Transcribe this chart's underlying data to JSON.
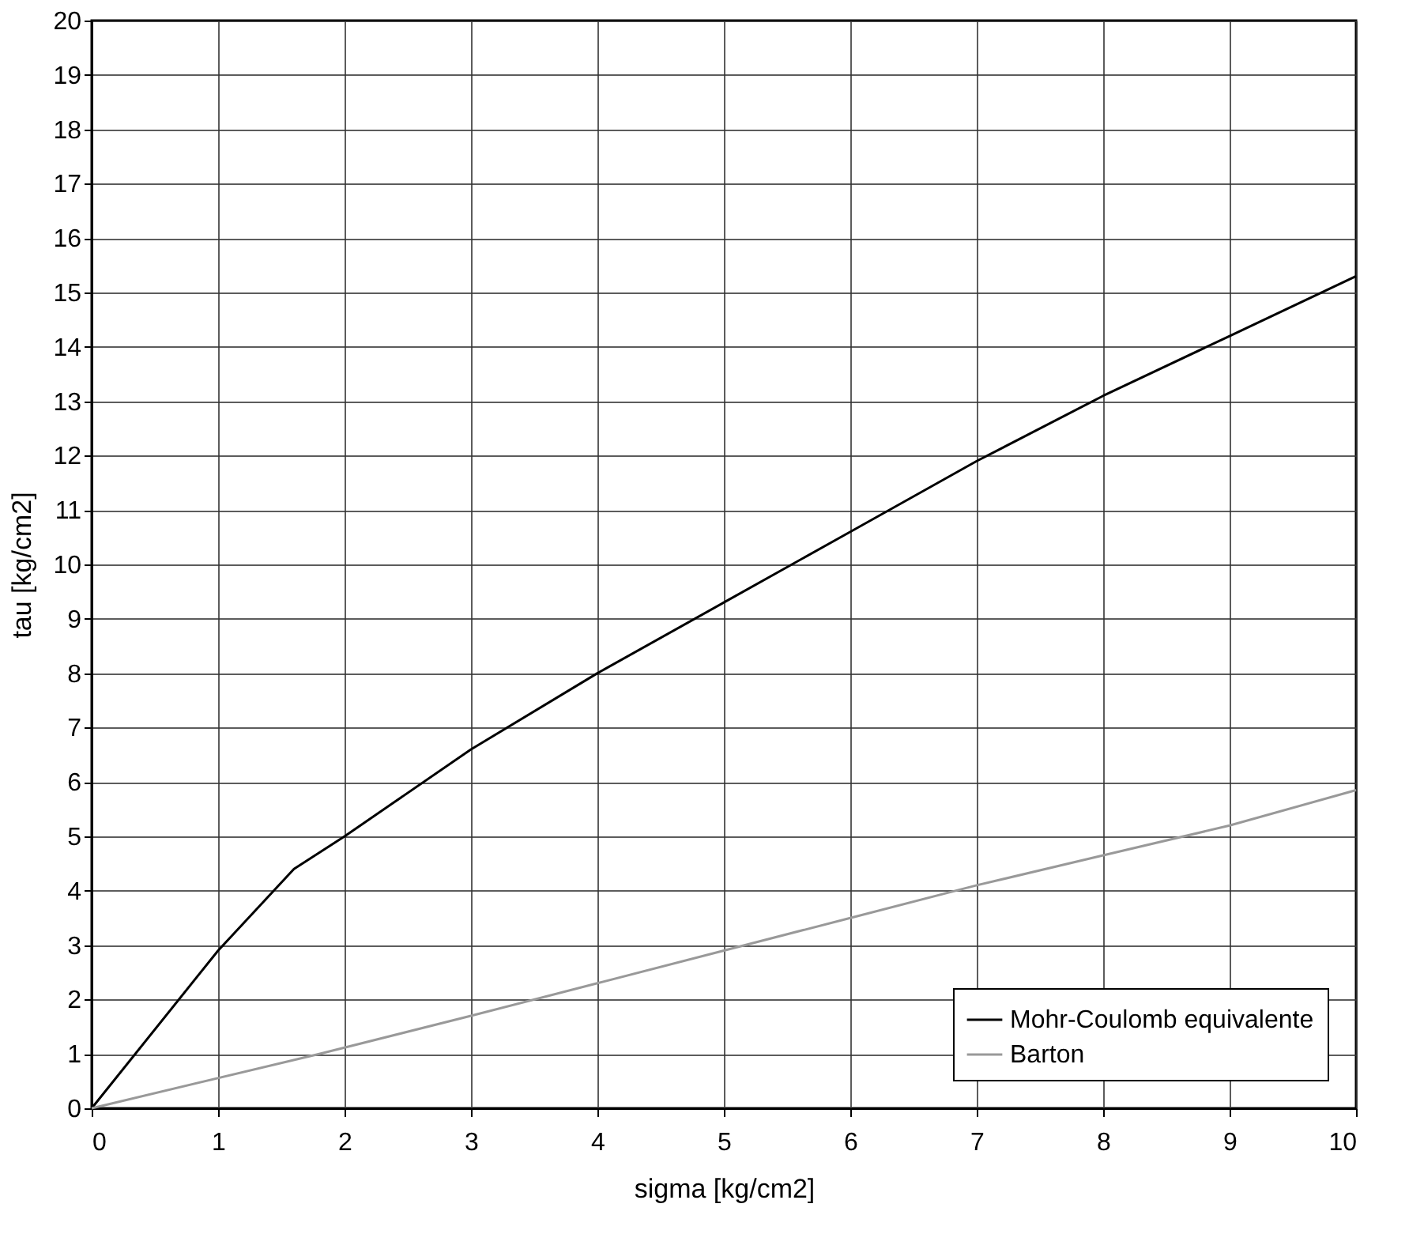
{
  "chart_data": {
    "type": "line",
    "xlabel": "sigma [kg/cm2]",
    "ylabel": "tau [kg/cm2]",
    "xlim": [
      0,
      10
    ],
    "ylim": [
      0,
      20
    ],
    "xticks": [
      0,
      1,
      2,
      3,
      4,
      5,
      6,
      7,
      8,
      9,
      10
    ],
    "yticks": [
      0,
      1,
      2,
      3,
      4,
      5,
      6,
      7,
      8,
      9,
      10,
      11,
      12,
      13,
      14,
      15,
      16,
      17,
      18,
      19,
      20
    ],
    "grid": true,
    "legend": "bottom right",
    "marker": "none",
    "line_style": "solid",
    "series": [
      {
        "name": "Mohr-Coulomb equivalente",
        "color": "#000000",
        "x": [
          0,
          1,
          1.6,
          2,
          3,
          4,
          5,
          6,
          7,
          8,
          9,
          10
        ],
        "values": [
          0,
          2.9,
          4.4,
          5,
          6.6,
          8,
          9.3,
          10.6,
          11.9,
          13.1,
          14.2,
          15.3
        ]
      },
      {
        "name": "Barton",
        "color": "#999999",
        "x": [
          0,
          1.8,
          3,
          4,
          5,
          6,
          7,
          8,
          9,
          10
        ],
        "values": [
          0,
          1,
          1.7,
          2.3,
          2.9,
          3.5,
          4.1,
          4.65,
          5.2,
          5.85
        ]
      }
    ]
  }
}
